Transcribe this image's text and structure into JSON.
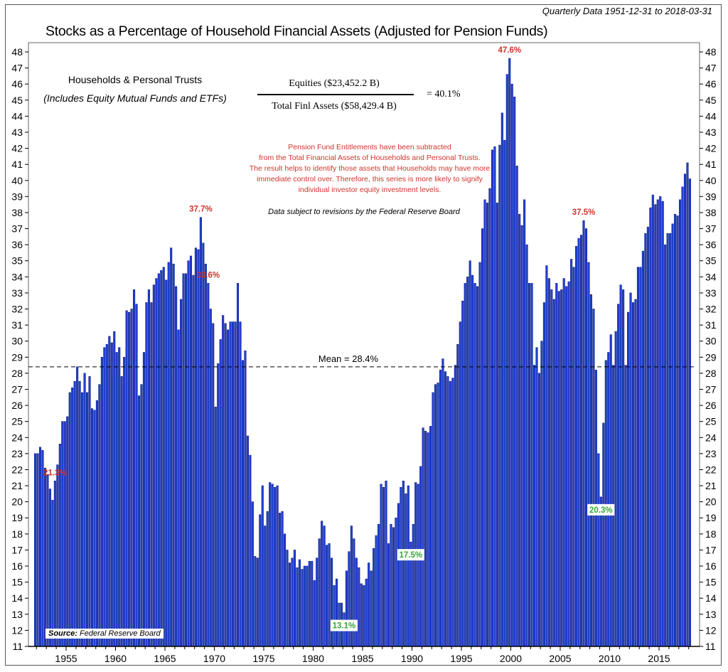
{
  "chart_data": {
    "type": "bar",
    "title": "Stocks as a Percentage of Household Financial Assets (Adjusted for Pension Funds)",
    "subtitle": "Quarterly Data 1951-12-31 to 2018-03-31",
    "start_date": "1951-12-31",
    "end_date": "2018-03-31",
    "frequency": "quarterly",
    "ylim": [
      11,
      48
    ],
    "yticks": [
      11,
      12,
      13,
      14,
      15,
      16,
      17,
      18,
      19,
      20,
      21,
      22,
      23,
      24,
      25,
      26,
      27,
      28,
      29,
      30,
      31,
      32,
      33,
      34,
      35,
      36,
      37,
      38,
      39,
      40,
      41,
      42,
      43,
      44,
      45,
      46,
      47,
      48
    ],
    "xticks": [
      "1955",
      "1960",
      "1965",
      "1970",
      "1975",
      "1980",
      "1985",
      "1990",
      "1995",
      "2000",
      "2005",
      "2010",
      "2015"
    ],
    "grid": false,
    "bar_color": "#2343d6",
    "bar_edge_color": "#0b1a7e",
    "values": [
      23.0,
      23.0,
      23.4,
      23.2,
      22.1,
      21.7,
      20.8,
      20.1,
      21.3,
      22.3,
      23.6,
      25.0,
      25.0,
      25.3,
      26.8,
      27.1,
      27.5,
      28.4,
      27.5,
      26.8,
      28.0,
      26.8,
      27.8,
      25.8,
      25.7,
      26.3,
      27.3,
      29.0,
      29.6,
      29.8,
      30.3,
      29.9,
      30.6,
      29.3,
      29.6,
      27.8,
      29.0,
      31.9,
      31.8,
      32.0,
      33.2,
      32.3,
      26.6,
      27.3,
      29.3,
      32.4,
      33.2,
      32.4,
      33.5,
      33.9,
      34.2,
      34.4,
      34.6,
      33.8,
      34.9,
      35.8,
      34.8,
      33.4,
      30.7,
      32.6,
      34.2,
      34.2,
      35.0,
      35.3,
      34.1,
      35.8,
      35.7,
      37.7,
      36.1,
      34.8,
      33.6,
      32.0,
      31.1,
      25.9,
      28.6,
      30.1,
      31.6,
      31.1,
      30.7,
      31.2,
      31.2,
      31.2,
      33.6,
      31.2,
      28.8,
      29.4,
      24.1,
      22.9,
      20.0,
      16.6,
      16.5,
      19.2,
      21.0,
      18.5,
      19.4,
      21.2,
      21.1,
      20.9,
      21.0,
      19.3,
      19.4,
      18.0,
      17.0,
      16.2,
      16.5,
      17.0,
      15.9,
      16.4,
      15.8,
      16.0,
      16.0,
      16.3,
      16.3,
      15.1,
      16.5,
      17.7,
      18.8,
      18.5,
      17.3,
      17.4,
      16.5,
      14.8,
      15.2,
      13.7,
      13.7,
      13.1,
      15.7,
      16.9,
      18.5,
      17.7,
      16.5,
      15.9,
      14.9,
      14.8,
      15.2,
      16.2,
      15.7,
      17.1,
      17.9,
      18.6,
      21.1,
      20.9,
      21.3,
      17.4,
      18.6,
      18.4,
      19.0,
      19.9,
      20.9,
      21.3,
      20.5,
      21.0,
      17.5,
      18.6,
      21.2,
      21.1,
      22.2,
      24.6,
      24.4,
      24.3,
      24.7,
      26.8,
      27.3,
      27.4,
      28.2,
      28.9,
      28.1,
      27.8,
      27.5,
      27.7,
      28.5,
      29.8,
      31.2,
      32.5,
      33.6,
      34.0,
      35.0,
      34.1,
      33.6,
      33.4,
      34.9,
      37.0,
      38.8,
      38.6,
      39.5,
      41.9,
      42.1,
      38.6,
      42.2,
      44.2,
      42.5,
      46.6,
      47.6,
      46.0,
      45.2,
      40.9,
      37.9,
      37.2,
      38.8,
      36.0,
      33.6,
      33.6,
      28.5,
      29.6,
      28.0,
      30.0,
      32.4,
      34.7,
      33.9,
      33.2,
      32.6,
      33.6,
      33.1,
      33.2,
      33.9,
      33.4,
      33.7,
      35.1,
      34.6,
      35.9,
      36.4,
      36.6,
      37.5,
      37.0,
      34.9,
      32.9,
      32.0,
      28.2,
      23.0,
      20.3,
      24.9,
      28.8,
      29.3,
      30.4,
      28.5,
      30.6,
      32.3,
      33.5,
      33.2,
      28.5,
      31.8,
      33.0,
      32.4,
      32.6,
      34.6,
      34.6,
      35.6,
      36.7,
      37.1,
      38.3,
      39.1,
      38.5,
      38.8,
      39.0,
      38.7,
      36.0,
      36.7,
      36.7,
      37.3,
      37.9,
      37.8,
      38.8,
      39.6,
      40.4,
      41.1,
      40.1
    ],
    "mean": {
      "value": 28.4,
      "label": "Mean = 28.4%"
    },
    "annotations": [
      {
        "label": "37.7%",
        "value": 37.7,
        "kind": "peak",
        "color": "#d0342c"
      },
      {
        "label": "33.6%",
        "value": 33.6,
        "kind": "peak",
        "color": "#d0342c"
      },
      {
        "label": "13.1%",
        "value": 13.1,
        "kind": "trough",
        "color": "#3aa53a"
      },
      {
        "label": "21.3%",
        "value": 21.3,
        "kind": "peak",
        "color": "#d0342c"
      },
      {
        "label": "17.5%",
        "value": 17.5,
        "kind": "trough",
        "color": "#3aa53a"
      },
      {
        "label": "47.6%",
        "value": 47.6,
        "kind": "peak",
        "color": "#d0342c"
      },
      {
        "label": "37.5%",
        "value": 37.5,
        "kind": "peak",
        "color": "#d0342c"
      },
      {
        "label": "20.3%",
        "value": 20.3,
        "kind": "trough",
        "color": "#3aa53a"
      }
    ]
  },
  "text": {
    "households": "Households & Personal Trusts",
    "includes": "(Includes Equity Mutual Funds and ETFs)",
    "numerator": "Equities ($23,452.2 B)",
    "denominator": "Total Finl Assets ($58,429.4 B)",
    "ratio": "=  40.1%",
    "note_lines": [
      "Pension Fund Entitlements have been subtracted",
      "from the Total Financial Assets of Households and Personal Trusts.",
      "The result helps to identify those assets that Households may have more",
      "immediate control over. Therefore, this series is more likely to signify",
      "individual investor equity investment levels."
    ],
    "note_color": "#d0342c",
    "revision": "Data subject to revisions by the Federal Reserve Board",
    "source_label": "Source:",
    "source_value": "Federal Reserve Board"
  }
}
